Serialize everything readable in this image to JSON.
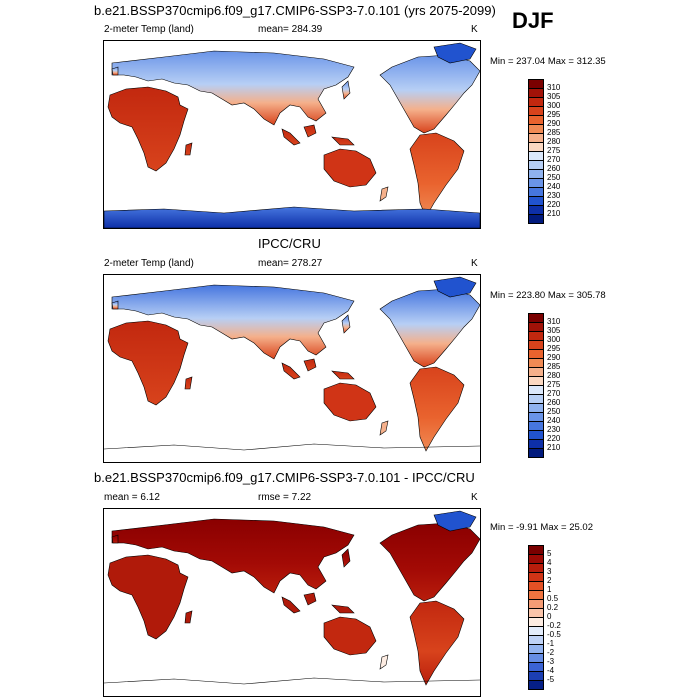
{
  "figure": {
    "season": "DJF"
  },
  "panels": [
    {
      "title": "b.e21.BSSP370cmip6.f09_g17.CMIP6-SSP3-7.0.101 (yrs 2075-2099)",
      "variable": "2-meter Temp (land)",
      "stat": "mean= 284.39",
      "units": "K",
      "minmax": "Min = 237.04 Max = 312.35",
      "labelbar": {
        "labels": [
          "310",
          "305",
          "300",
          "295",
          "290",
          "285",
          "280",
          "275",
          "270",
          "260",
          "250",
          "240",
          "230",
          "220",
          "210"
        ],
        "colors": [
          "#7a0000",
          "#a11208",
          "#c2280f",
          "#d8431c",
          "#e9632e",
          "#f08a54",
          "#f5b08b",
          "#fbd8c2",
          "#dbe8fb",
          "#b7cff5",
          "#8fb2ef",
          "#6a94e8",
          "#4676df",
          "#2153cf",
          "#0d2fa8",
          "#011a7d"
        ]
      },
      "style": "temp",
      "antarctica": true
    },
    {
      "title": "IPCC/CRU",
      "variable": "2-meter Temp (land)",
      "stat": "mean= 278.27",
      "units": "K",
      "minmax": "Min = 223.80 Max = 305.78",
      "labelbar": {
        "labels": [
          "310",
          "305",
          "300",
          "295",
          "290",
          "285",
          "280",
          "275",
          "270",
          "260",
          "250",
          "240",
          "230",
          "220",
          "210"
        ],
        "colors": [
          "#7a0000",
          "#a11208",
          "#c2280f",
          "#d8431c",
          "#e9632e",
          "#f08a54",
          "#f5b08b",
          "#fbd8c2",
          "#dbe8fb",
          "#b7cff5",
          "#8fb2ef",
          "#6a94e8",
          "#4676df",
          "#2153cf",
          "#0d2fa8",
          "#011a7d"
        ]
      },
      "style": "obs",
      "antarctica": false
    },
    {
      "title": "b.e21.BSSP370cmip6.f09_g17.CMIP6-SSP3-7.0.101 - IPCC/CRU",
      "variable": "mean =   6.12",
      "stat": "rmse =   7.22",
      "units": "K",
      "minmax": "Min =  -9.91 Max =  25.02",
      "labelbar": {
        "labels": [
          "5",
          "4",
          "3",
          "2",
          "1",
          "0.5",
          "0.2",
          "0",
          "-0.2",
          "-0.5",
          "-1",
          "-2",
          "-3",
          "-4",
          "-5"
        ],
        "colors": [
          "#7a0000",
          "#9c0a05",
          "#b81d0c",
          "#d03416",
          "#e35125",
          "#ef7440",
          "#f59c75",
          "#fac4aa",
          "#fdece2",
          "#e3ecfb",
          "#bfd2f6",
          "#93b3ef",
          "#668de4",
          "#3b63d4",
          "#1c3fb3",
          "#061f86"
        ]
      },
      "style": "diff",
      "antarctica": false
    }
  ]
}
